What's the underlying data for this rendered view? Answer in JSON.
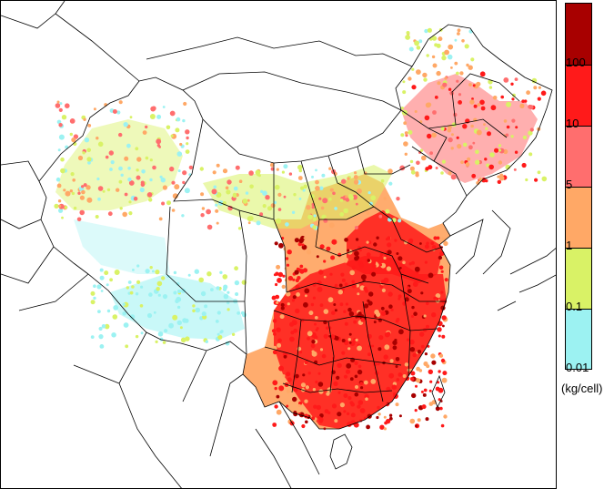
{
  "legend": {
    "unit": "(kg/cell)",
    "ticks": [
      "100",
      "10",
      "5",
      "1",
      "0.1",
      "0.01"
    ],
    "bins": [
      {
        "color": "#a80000"
      },
      {
        "color": "#ff1a1a"
      },
      {
        "color": "#ff6e6e"
      },
      {
        "color": "#ffa866"
      },
      {
        "color": "#d9f266"
      },
      {
        "color": "#9cf2f2"
      }
    ]
  },
  "colors": {
    "very_low": "#9cf2f2",
    "low": "#d9f266",
    "mid": "#ffa866",
    "high": "#ff6e6e",
    "very_high": "#ff1a1a",
    "extreme": "#a80000",
    "boundary": "#000000"
  }
}
